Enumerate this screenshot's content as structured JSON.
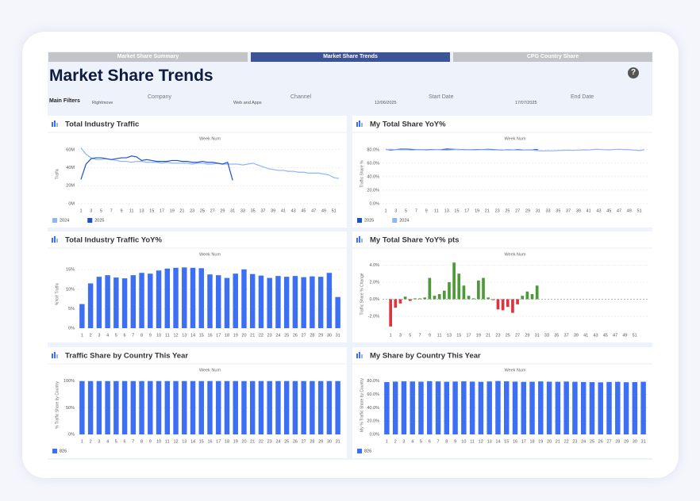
{
  "tabs": [
    "Market Share Summary",
    "Market Share Trends",
    "CPG Country Share"
  ],
  "title": "Market Share Trends",
  "help": "?",
  "filters": {
    "label": "Main Filters",
    "fields": [
      {
        "label": "Company",
        "value": "Rightmove"
      },
      {
        "label": "Channel",
        "value": "Web and Apps"
      },
      {
        "label": "Start Date",
        "value": "12/06/2025"
      },
      {
        "label": "End Date",
        "value": "17/07/2025"
      }
    ]
  },
  "chart_data": [
    {
      "type": "line",
      "title": "Total Industry Traffic",
      "x_label": "Week Num",
      "y_label": "Traffic",
      "grid": true,
      "x": [
        1,
        2,
        3,
        4,
        5,
        6,
        7,
        8,
        9,
        10,
        11,
        12,
        13,
        14,
        15,
        16,
        17,
        18,
        19,
        20,
        21,
        22,
        23,
        24,
        25,
        26,
        27,
        28,
        29,
        30,
        31,
        32,
        33,
        34,
        35,
        36,
        37,
        38,
        39,
        40,
        41,
        42,
        43,
        44,
        45,
        46,
        47,
        48,
        49,
        50,
        51,
        52
      ],
      "xlim": [
        1,
        52
      ],
      "xticks": [
        1,
        3,
        5,
        7,
        9,
        11,
        13,
        15,
        17,
        19,
        21,
        23,
        25,
        27,
        29,
        31,
        33,
        35,
        37,
        39,
        41,
        43,
        45,
        47,
        49,
        51
      ],
      "ylim": [
        0,
        66
      ],
      "yticks": [
        {
          "value": 0,
          "label": "0M"
        },
        {
          "value": 20,
          "label": "20M"
        },
        {
          "value": 40,
          "label": "40M"
        },
        {
          "value": 60,
          "label": "60M"
        }
      ],
      "series": [
        {
          "name": "2024",
          "color": "#8fb5f3",
          "values": [
            62,
            55,
            51,
            49,
            49,
            50,
            49,
            48,
            47,
            47,
            46,
            47,
            47,
            46,
            46,
            46,
            45,
            46,
            45,
            45,
            45,
            45,
            44,
            45,
            45,
            44,
            44,
            45,
            44,
            44,
            44,
            44,
            43,
            44,
            45,
            43,
            41,
            39,
            38,
            37,
            37,
            36,
            36,
            35,
            35,
            34,
            34,
            34,
            33,
            32,
            29,
            28
          ]
        },
        {
          "name": "2025",
          "color": "#1d4fd0",
          "values": [
            27,
            44,
            50,
            51,
            51,
            50,
            49,
            50,
            51,
            51,
            53,
            52,
            48,
            49,
            48,
            47,
            47,
            47,
            48,
            48,
            47,
            47,
            46,
            46,
            47,
            46,
            46,
            45,
            44,
            46,
            26,
            null,
            null,
            null,
            null,
            null,
            null,
            null,
            null,
            null,
            null,
            null,
            null,
            null,
            null,
            null,
            null,
            null,
            null,
            null,
            null,
            null
          ]
        }
      ]
    },
    {
      "type": "line",
      "title": "My Total Share YoY%",
      "x_label": "Week Num",
      "y_label": "Traffic Share %",
      "grid": true,
      "x": [
        1,
        2,
        3,
        4,
        5,
        6,
        7,
        8,
        9,
        10,
        11,
        12,
        13,
        14,
        15,
        16,
        17,
        18,
        19,
        20,
        21,
        22,
        23,
        24,
        25,
        26,
        27,
        28,
        29,
        30,
        31,
        32,
        33,
        34,
        35,
        36,
        37,
        38,
        39,
        40,
        41,
        42,
        43,
        44,
        45,
        46,
        47,
        48,
        49,
        50,
        51,
        52
      ],
      "xlim": [
        1,
        52
      ],
      "xticks": [
        1,
        3,
        5,
        7,
        9,
        11,
        13,
        15,
        17,
        19,
        21,
        23,
        25,
        27,
        29,
        31,
        33,
        35,
        37,
        39,
        41,
        43,
        45,
        47,
        49,
        51
      ],
      "ylim": [
        0,
        88
      ],
      "yticks": [
        {
          "value": 0,
          "label": "0.0%"
        },
        {
          "value": 20,
          "label": "20.0%"
        },
        {
          "value": 40,
          "label": "40.0%"
        },
        {
          "value": 60,
          "label": "60.0%"
        },
        {
          "value": 80,
          "label": "80.0%"
        }
      ],
      "series": [
        {
          "name": "2025",
          "color": "#1d4fd0",
          "values": [
            80.5,
            79.6,
            80.2,
            80.8,
            80.9,
            80.5,
            79.9,
            80.1,
            79.8,
            80.2,
            79.9,
            80.1,
            81.0,
            80.7,
            80.4,
            80.2,
            79.9,
            80.0,
            80.3,
            80.1,
            80.5,
            80.2,
            79.8,
            79.6,
            79.9,
            79.7,
            80.1,
            79.8,
            79.7,
            79.8,
            80.3,
            null,
            null,
            null,
            null,
            null,
            null,
            null,
            null,
            null,
            null,
            null,
            null,
            null,
            null,
            null,
            null,
            null,
            null,
            null,
            null,
            null
          ]
        },
        {
          "name": "2024",
          "color": "#8fb5f3",
          "values": [
            80.2,
            80.6,
            80.1,
            79.8,
            80.0,
            79.5,
            79.7,
            79.9,
            79.4,
            79.8,
            80.0,
            79.6,
            79.5,
            79.8,
            80.2,
            79.9,
            79.7,
            79.6,
            79.8,
            80.0,
            79.9,
            79.7,
            79.5,
            79.6,
            79.9,
            79.8,
            79.4,
            79.6,
            79.5,
            79.3,
            78.6,
            78.2,
            78.5,
            78.4,
            78.9,
            79.1,
            79.3,
            79.0,
            79.4,
            79.8,
            79.6,
            80.4,
            80.6,
            80.0,
            79.8,
            80.3,
            80.6,
            80.2,
            79.9,
            79.4,
            78.8,
            80.1
          ]
        }
      ]
    },
    {
      "type": "bar",
      "title": "Total Industry Traffic YoY%",
      "x_label": "Week Num",
      "y_label": "%YoY Traffic",
      "grid": true,
      "categories": [
        "1",
        "2",
        "3",
        "4",
        "5",
        "6",
        "7",
        "8",
        "9",
        "10",
        "11",
        "12",
        "13",
        "14",
        "15",
        "16",
        "17",
        "18",
        "19",
        "20",
        "21",
        "22",
        "23",
        "24",
        "25",
        "26",
        "27",
        "28",
        "29",
        "30",
        "31"
      ],
      "ylim": [
        0,
        17.5
      ],
      "yticks": [
        {
          "value": 0,
          "label": "0%"
        },
        {
          "value": 5,
          "label": "5%"
        },
        {
          "value": 10,
          "label": "10%"
        },
        {
          "value": 15,
          "label": "15%"
        }
      ],
      "series": [
        {
          "color": "#3c6ff3",
          "values": [
            6.2,
            11.5,
            13.2,
            13.6,
            13.0,
            12.8,
            13.6,
            14.2,
            14.0,
            14.8,
            15.3,
            15.5,
            15.6,
            15.5,
            15.4,
            13.8,
            13.6,
            12.9,
            14.0,
            15.1,
            13.9,
            13.5,
            12.9,
            13.4,
            13.2,
            13.4,
            13.1,
            13.3,
            13.2,
            14.2,
            8.0
          ]
        }
      ]
    },
    {
      "type": "bar",
      "title": "My Total Share YoY% pts",
      "x_label": "Week Num",
      "y_label": "Traffic Share % Change",
      "grid": true,
      "x": [
        1,
        2,
        3,
        4,
        5,
        6,
        7,
        8,
        9,
        10,
        11,
        12,
        13,
        14,
        15,
        16,
        17,
        18,
        19,
        20,
        21,
        22,
        23,
        24,
        25,
        26,
        27,
        28,
        29,
        30,
        31
      ],
      "xlim": [
        0,
        53
      ],
      "xticks": [
        1,
        3,
        5,
        7,
        9,
        11,
        13,
        15,
        17,
        19,
        21,
        23,
        25,
        27,
        29,
        31,
        33,
        35,
        37,
        39,
        41,
        43,
        45,
        47,
        49,
        51
      ],
      "ylim": [
        -3.4,
        4.6
      ],
      "yticks": [
        {
          "value": -2,
          "label": "-2.0%"
        },
        {
          "value": 0,
          "label": "0.0%"
        },
        {
          "value": 2,
          "label": "2.0%"
        },
        {
          "value": 4,
          "label": "4.0%"
        }
      ],
      "positive_color": "#4e9a3a",
      "negative_color": "#d9373f",
      "series": [
        {
          "values": [
            -3.2,
            -1.0,
            -0.5,
            0.3,
            -0.2,
            0.1,
            0.1,
            0.2,
            2.5,
            0.4,
            0.6,
            1.0,
            2.0,
            4.3,
            3.0,
            1.6,
            0.4,
            0.1,
            2.2,
            2.5,
            0.2,
            -0.1,
            -1.2,
            -1.3,
            -0.9,
            -1.6,
            -0.6,
            0.4,
            0.9,
            0.6,
            1.6
          ]
        }
      ]
    },
    {
      "type": "bar",
      "title": "Traffic Share by Country This Year",
      "x_label": "Week Num",
      "y_label": "% Traffic Share by Country",
      "grid": true,
      "categories": [
        "1",
        "2",
        "3",
        "4",
        "5",
        "6",
        "7",
        "8",
        "9",
        "10",
        "11",
        "12",
        "13",
        "14",
        "15",
        "16",
        "17",
        "18",
        "19",
        "20",
        "21",
        "22",
        "23",
        "24",
        "25",
        "26",
        "27",
        "28",
        "29",
        "30",
        "31"
      ],
      "ylim": [
        0,
        110
      ],
      "yticks": [
        {
          "value": 0,
          "label": "0%"
        },
        {
          "value": 50,
          "label": "50%"
        },
        {
          "value": 100,
          "label": "100%"
        }
      ],
      "series": [
        {
          "name": "826",
          "color": "#3c6ff3",
          "values": [
            100,
            100,
            100,
            100,
            100,
            100,
            100,
            100,
            100,
            100,
            100,
            100,
            100,
            100,
            100,
            100,
            100,
            100,
            100,
            100,
            100,
            100,
            100,
            100,
            100,
            100,
            100,
            100,
            100,
            100,
            100
          ]
        }
      ]
    },
    {
      "type": "bar",
      "title": "My Share by Country This Year",
      "x_label": "Week Num",
      "y_label": "My % Traffic Share by Country",
      "grid": true,
      "categories": [
        "1",
        "2",
        "3",
        "4",
        "5",
        "6",
        "7",
        "8",
        "9",
        "10",
        "11",
        "12",
        "13",
        "14",
        "15",
        "16",
        "17",
        "18",
        "19",
        "20",
        "21",
        "22",
        "23",
        "24",
        "25",
        "26",
        "27",
        "28",
        "29",
        "30",
        "31"
      ],
      "ylim": [
        0,
        88
      ],
      "yticks": [
        {
          "value": 0,
          "label": "0.0%"
        },
        {
          "value": 20,
          "label": "20.0%"
        },
        {
          "value": 40,
          "label": "40.0%"
        },
        {
          "value": 60,
          "label": "60.0%"
        },
        {
          "value": 80,
          "label": "80.0%"
        }
      ],
      "series": [
        {
          "name": "826",
          "color": "#3c6ff3",
          "values": [
            78.5,
            79.2,
            79.6,
            79.4,
            79.1,
            79.8,
            79.5,
            79.0,
            79.3,
            79.6,
            79.2,
            78.9,
            79.4,
            80.1,
            79.6,
            79.2,
            78.8,
            79.0,
            79.5,
            79.1,
            79.0,
            79.3,
            78.9,
            78.6,
            78.4,
            78.1,
            78.7,
            78.9,
            78.3,
            78.5,
            79.0
          ]
        }
      ]
    }
  ]
}
